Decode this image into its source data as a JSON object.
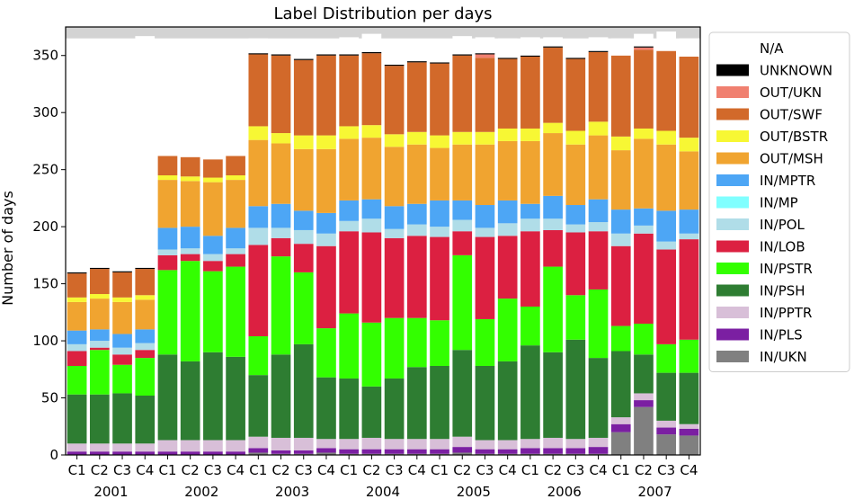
{
  "chart_data": {
    "type": "bar",
    "stacked": true,
    "title": "Label Distribution per days",
    "xlabel": "",
    "ylabel": "Number of days",
    "ylim": [
      0,
      375
    ],
    "yticks": [
      0,
      50,
      100,
      150,
      200,
      250,
      300,
      350
    ],
    "grid": false,
    "legend_position": "right",
    "background_band": {
      "from": 365,
      "to": 375,
      "color": "#d3d3d3"
    },
    "categories": [
      "C1",
      "C2",
      "C3",
      "C4",
      "C1",
      "C2",
      "C3",
      "C4",
      "C1",
      "C2",
      "C3",
      "C4",
      "C1",
      "C2",
      "C3",
      "C4",
      "C1",
      "C2",
      "C3",
      "C4",
      "C1",
      "C2",
      "C3",
      "C4",
      "C1",
      "C2",
      "C3",
      "C4"
    ],
    "groups": [
      "2001",
      "2002",
      "2003",
      "2004",
      "2005",
      "2006",
      "2007"
    ],
    "series": [
      {
        "name": "IN/UKN",
        "color": "#808080",
        "values": [
          0,
          0,
          0,
          0,
          0,
          0,
          0,
          0,
          2,
          1,
          1,
          2,
          1,
          1,
          1,
          1,
          1,
          2,
          1,
          1,
          1,
          1,
          1,
          1,
          20,
          42,
          18,
          17
        ]
      },
      {
        "name": "IN/PLS",
        "color": "#7b1fa2",
        "values": [
          3,
          3,
          3,
          3,
          3,
          3,
          3,
          3,
          4,
          3,
          3,
          4,
          4,
          4,
          4,
          4,
          4,
          5,
          4,
          4,
          5,
          5,
          5,
          6,
          7,
          6,
          6,
          6
        ]
      },
      {
        "name": "IN/PPTR",
        "color": "#d8bfd8",
        "values": [
          7,
          7,
          7,
          7,
          10,
          10,
          10,
          10,
          10,
          11,
          11,
          8,
          9,
          10,
          9,
          9,
          9,
          9,
          8,
          8,
          8,
          9,
          8,
          8,
          6,
          6,
          6,
          4
        ]
      },
      {
        "name": "IN/PSH",
        "color": "#2e7d32",
        "values": [
          43,
          43,
          44,
          42,
          75,
          69,
          77,
          73,
          54,
          73,
          82,
          54,
          53,
          45,
          53,
          63,
          64,
          76,
          65,
          69,
          82,
          75,
          87,
          70,
          58,
          34,
          42,
          45
        ]
      },
      {
        "name": "IN/PSTR",
        "color": "#33ff00",
        "values": [
          25,
          39,
          25,
          33,
          74,
          88,
          71,
          79,
          34,
          86,
          63,
          43,
          57,
          56,
          53,
          43,
          40,
          83,
          41,
          55,
          34,
          75,
          39,
          60,
          22,
          27,
          25,
          29
        ]
      },
      {
        "name": "IN/LOB",
        "color": "#dc2041",
        "values": [
          13,
          2,
          9,
          7,
          13,
          6,
          9,
          11,
          80,
          16,
          25,
          72,
          72,
          79,
          70,
          72,
          73,
          21,
          72,
          55,
          66,
          32,
          55,
          51,
          70,
          79,
          83,
          88
        ]
      },
      {
        "name": "IN/POL",
        "color": "#b0dde8",
        "values": [
          6,
          6,
          6,
          6,
          5,
          5,
          6,
          5,
          15,
          9,
          12,
          11,
          9,
          12,
          8,
          10,
          9,
          10,
          8,
          11,
          11,
          10,
          7,
          8,
          11,
          7,
          7,
          5
        ]
      },
      {
        "name": "IN/MP",
        "color": "#80ffff",
        "values": [
          0,
          0,
          0,
          0,
          0,
          0,
          0,
          0,
          0,
          0,
          0,
          0,
          0,
          0,
          0,
          0,
          0,
          0,
          0,
          0,
          0,
          0,
          0,
          0,
          0,
          0,
          0,
          0
        ]
      },
      {
        "name": "IN/MPTR",
        "color": "#4da6f5",
        "values": [
          12,
          10,
          12,
          12,
          19,
          19,
          16,
          18,
          19,
          21,
          17,
          18,
          18,
          17,
          20,
          18,
          23,
          17,
          20,
          20,
          13,
          20,
          17,
          20,
          21,
          15,
          27,
          21
        ]
      },
      {
        "name": "OUT/MSH",
        "color": "#f0a430",
        "values": [
          25,
          27,
          28,
          26,
          42,
          40,
          47,
          42,
          58,
          53,
          54,
          56,
          54,
          54,
          52,
          52,
          46,
          49,
          53,
          52,
          55,
          55,
          53,
          56,
          52,
          61,
          58,
          51
        ]
      },
      {
        "name": "OUT/BSTR",
        "color": "#f7f734",
        "values": [
          4,
          4,
          4,
          4,
          4,
          4,
          4,
          4,
          12,
          9,
          12,
          12,
          11,
          11,
          11,
          11,
          11,
          11,
          11,
          11,
          11,
          9,
          12,
          12,
          12,
          9,
          12,
          12
        ]
      },
      {
        "name": "OUT/SWF",
        "color": "#d2692a",
        "values": [
          21,
          22,
          22,
          23,
          17,
          17,
          16,
          17,
          63,
          68,
          66,
          70,
          62,
          63,
          60,
          61,
          63,
          67,
          65,
          61,
          63,
          66,
          63,
          61,
          71,
          69,
          70,
          71
        ]
      },
      {
        "name": "OUT/UKN",
        "color": "#f08070",
        "values": [
          0,
          0,
          0,
          0,
          0,
          0,
          0,
          0,
          0,
          0,
          0,
          0,
          0,
          0,
          0,
          0,
          0,
          0,
          3,
          0,
          0,
          0,
          0,
          0,
          0,
          2,
          0,
          0
        ]
      },
      {
        "name": "UNKNOWN",
        "color": "#000000",
        "values": [
          1,
          1,
          1,
          1,
          0,
          0,
          0,
          0,
          1,
          1,
          1,
          1,
          1,
          1,
          1,
          1,
          1,
          1,
          1,
          1,
          1,
          1,
          1,
          1,
          0,
          1,
          0,
          0
        ]
      },
      {
        "name": "N/A",
        "color": "#ffffff",
        "values": [
          202,
          199,
          202,
          203,
          96,
          97,
          99,
          97,
          13,
          12,
          13,
          12,
          15,
          16,
          19,
          18,
          20,
          16,
          14,
          17,
          16,
          8,
          11,
          12,
          15,
          11,
          17,
          16
        ]
      }
    ]
  }
}
